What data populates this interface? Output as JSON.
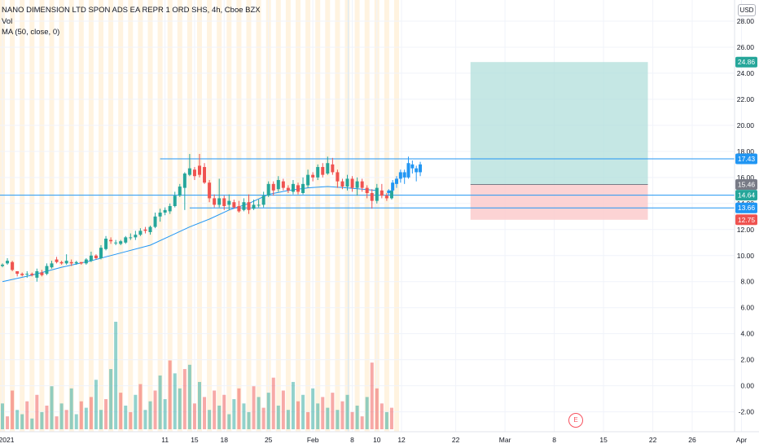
{
  "legend": {
    "symbol": "NANO DIMENSION LTD SPON ADS EA REPR 1 ORD SHS, 4h, Cboe BZX",
    "volume": "Vol",
    "ma": "MA (50, close, 0)"
  },
  "currency": "USD",
  "earnings_marker": "E",
  "colors": {
    "up": "#26a69a",
    "down": "#ef5350",
    "projection": "#2196f3",
    "ma": "#2196f3",
    "level_line": "#2196f3",
    "target_zone": "#b2dfdb",
    "stop_zone": "#fccbcd",
    "session_band": "#fff3e0"
  },
  "chart_data": {
    "type": "candlestick",
    "x_axis": {
      "tick_labels": [
        "2021",
        "11",
        "15",
        "18",
        "25",
        "Feb",
        "8",
        "10",
        "12",
        "22",
        "Mar",
        "8",
        "15",
        "22",
        "26",
        "Apr"
      ],
      "tick_positions": [
        0.0,
        16.5,
        19.5,
        22.5,
        27.0,
        31.5,
        35.5,
        38.0,
        40.5,
        46.0,
        51.0,
        56.0,
        61.0,
        66.0,
        70.0,
        75.0
      ]
    },
    "y_axis": {
      "tick_labels": [
        "28.00",
        "26.00",
        "24.00",
        "22.00",
        "20.00",
        "18.00",
        "16.00",
        "14.00",
        "12.00",
        "10.00",
        "8.00",
        "6.00",
        "4.00",
        "2.00",
        "0.00",
        "-2.00"
      ],
      "ylim": [
        -2.9,
        29
      ]
    },
    "price_badges": [
      {
        "label": "24.86",
        "value": 24.86,
        "color": "#26a69a"
      },
      {
        "label": "17.43",
        "value": 17.43,
        "color": "#2196f3"
      },
      {
        "label": "15.46",
        "value": 15.46,
        "color": "#787b86"
      },
      {
        "label": "14.64",
        "value": 14.64,
        "color": "#26a69a"
      },
      {
        "label": "13.66",
        "value": 13.66,
        "color": "#2196f3"
      },
      {
        "label": "12.75",
        "value": 12.75,
        "color": "#ef5350"
      }
    ],
    "horizontal_levels": [
      {
        "value": 17.43,
        "x_start": 16.0,
        "x_end": 999
      },
      {
        "value": 14.64,
        "x_start": -1,
        "x_end": 999
      },
      {
        "value": 13.66,
        "x_start": 19.0,
        "x_end": 999
      }
    ],
    "position_tool": {
      "x_start": 47.5,
      "x_end": 65.5,
      "entry": 15.46,
      "target": 24.86,
      "stop": 12.75
    },
    "ma_line": [
      [
        0,
        8.0
      ],
      [
        3,
        8.5
      ],
      [
        6,
        9.1
      ],
      [
        9,
        9.6
      ],
      [
        12,
        10.2
      ],
      [
        15,
        10.8
      ],
      [
        17,
        11.5
      ],
      [
        19,
        12.2
      ],
      [
        21,
        12.8
      ],
      [
        23,
        13.5
      ],
      [
        25,
        14.0
      ],
      [
        27,
        14.7
      ],
      [
        29,
        15.0
      ],
      [
        31,
        15.2
      ],
      [
        33,
        15.3
      ],
      [
        35,
        15.2
      ],
      [
        36.5,
        15.1
      ],
      [
        38,
        15.0
      ]
    ],
    "candles": [
      [
        0.0,
        9.2,
        9.3,
        9.4,
        9.1
      ],
      [
        0.5,
        9.4,
        9.6,
        9.8,
        9.3
      ],
      [
        1.0,
        9.5,
        8.9,
        9.6,
        8.8
      ],
      [
        1.5,
        8.8,
        8.6,
        8.8,
        8.4
      ],
      [
        2.0,
        8.6,
        8.5,
        8.7,
        8.4
      ],
      [
        2.5,
        8.6,
        8.6,
        8.8,
        8.3
      ],
      [
        3.0,
        8.6,
        8.5,
        8.7,
        8.4
      ],
      [
        3.5,
        8.3,
        8.8,
        9.0,
        8.0
      ],
      [
        4.0,
        8.7,
        8.5,
        8.9,
        8.4
      ],
      [
        4.5,
        8.6,
        9.2,
        9.4,
        8.5
      ],
      [
        5.0,
        9.1,
        9.4,
        9.6,
        9.0
      ],
      [
        5.5,
        9.7,
        9.5,
        9.9,
        9.4
      ],
      [
        6.0,
        9.5,
        9.4,
        9.6,
        9.3
      ],
      [
        6.5,
        9.4,
        9.6,
        10.1,
        9.3
      ],
      [
        7.0,
        9.5,
        9.4,
        9.7,
        9.2
      ],
      [
        7.5,
        9.4,
        9.5,
        9.6,
        9.3
      ],
      [
        8.0,
        9.5,
        9.4,
        9.5,
        9.3
      ],
      [
        8.5,
        9.4,
        9.7,
        9.8,
        9.3
      ],
      [
        9.0,
        9.6,
        10.0,
        10.3,
        9.5
      ],
      [
        9.5,
        10.0,
        9.8,
        10.1,
        9.7
      ],
      [
        10.0,
        9.8,
        10.6,
        10.8,
        9.7
      ],
      [
        10.5,
        10.5,
        11.3,
        11.5,
        10.4
      ],
      [
        11.0,
        11.2,
        11.1,
        11.4,
        10.9
      ],
      [
        11.5,
        11.0,
        11.0,
        11.2,
        10.8
      ],
      [
        12.0,
        10.9,
        11.1,
        11.2,
        10.8
      ],
      [
        12.5,
        11.0,
        11.4,
        11.5,
        10.9
      ],
      [
        13.0,
        11.4,
        11.4,
        11.7,
        11.2
      ],
      [
        13.5,
        11.4,
        11.6,
        11.9,
        11.2
      ],
      [
        14.0,
        11.6,
        11.9,
        12.1,
        11.5
      ],
      [
        14.5,
        12.0,
        11.9,
        12.2,
        11.7
      ],
      [
        15.0,
        11.8,
        12.2,
        12.3,
        11.6
      ],
      [
        15.5,
        12.2,
        13.0,
        13.3,
        12.1
      ],
      [
        16.0,
        13.0,
        13.3,
        13.6,
        12.6
      ],
      [
        16.5,
        13.3,
        13.5,
        13.7,
        13.1
      ],
      [
        17.0,
        13.4,
        13.8,
        14.0,
        13.2
      ],
      [
        17.5,
        13.8,
        14.6,
        14.9,
        13.7
      ],
      [
        18.0,
        14.6,
        15.3,
        15.5,
        14.5
      ],
      [
        18.5,
        15.2,
        16.3,
        16.4,
        13.5
      ],
      [
        19.0,
        16.2,
        16.7,
        17.8,
        16.1
      ],
      [
        19.5,
        16.6,
        16.1,
        16.8,
        15.8
      ],
      [
        20.0,
        16.9,
        16.2,
        17.8,
        16.0
      ],
      [
        20.5,
        16.8,
        15.6,
        17.1,
        15.5
      ],
      [
        21.0,
        15.6,
        14.4,
        15.8,
        14.1
      ],
      [
        21.5,
        14.4,
        13.9,
        14.7,
        13.7
      ],
      [
        22.0,
        13.9,
        14.4,
        15.9,
        13.7
      ],
      [
        22.5,
        14.4,
        13.8,
        14.6,
        13.5
      ],
      [
        23.0,
        13.9,
        14.2,
        14.7,
        13.5
      ],
      [
        23.5,
        14.1,
        13.7,
        14.3,
        13.6
      ],
      [
        24.0,
        13.8,
        13.4,
        14.2,
        13.3
      ],
      [
        24.5,
        13.5,
        14.1,
        14.4,
        13.4
      ],
      [
        25.0,
        14.1,
        13.5,
        14.7,
        13.2
      ],
      [
        25.5,
        13.6,
        13.9,
        14.3,
        13.5
      ],
      [
        26.0,
        13.9,
        13.9,
        14.3,
        13.7
      ],
      [
        26.5,
        13.9,
        14.6,
        14.9,
        13.7
      ],
      [
        27.0,
        14.6,
        15.5,
        15.7,
        14.5
      ],
      [
        27.5,
        15.5,
        15.0,
        15.7,
        14.6
      ],
      [
        28.0,
        15.1,
        15.8,
        16.1,
        14.9
      ],
      [
        28.5,
        15.7,
        15.2,
        15.9,
        15.0
      ],
      [
        29.0,
        15.2,
        15.0,
        15.4,
        14.8
      ],
      [
        29.5,
        14.9,
        15.5,
        15.8,
        14.7
      ],
      [
        30.0,
        15.4,
        14.9,
        15.6,
        14.7
      ],
      [
        30.5,
        14.8,
        15.5,
        16.0,
        14.7
      ],
      [
        31.0,
        15.4,
        16.2,
        16.6,
        15.2
      ],
      [
        31.5,
        16.2,
        16.0,
        16.4,
        15.7
      ],
      [
        32.0,
        16.0,
        16.8,
        17.0,
        15.8
      ],
      [
        32.5,
        16.8,
        16.2,
        17.1,
        16.0
      ],
      [
        33.0,
        16.3,
        17.1,
        17.6,
        16.2
      ],
      [
        33.5,
        17.0,
        16.4,
        17.5,
        16.2
      ],
      [
        34.0,
        16.4,
        15.7,
        16.6,
        15.2
      ],
      [
        34.5,
        15.7,
        15.3,
        15.9,
        15.1
      ],
      [
        35.0,
        15.3,
        15.9,
        16.2,
        15.0
      ],
      [
        35.5,
        15.9,
        15.2,
        16.1,
        14.9
      ],
      [
        36.0,
        15.2,
        15.7,
        16.0,
        14.6
      ],
      [
        36.5,
        15.7,
        15.2,
        15.9,
        14.9
      ],
      [
        37.0,
        15.2,
        14.8,
        15.4,
        14.4
      ],
      [
        37.5,
        14.8,
        14.2,
        15.1,
        13.6
      ],
      [
        38.0,
        14.2,
        15.2,
        15.5,
        14.0
      ],
      [
        38.5,
        15.0,
        14.6,
        15.5,
        14.4
      ],
      [
        39.0,
        14.6,
        14.4,
        14.8,
        14.2
      ],
      [
        39.5,
        14.4,
        15.0,
        15.2,
        14.3
      ]
    ],
    "projection": [
      [
        39.2,
        14.8,
        15.0,
        15.1,
        14.6
      ],
      [
        39.6,
        15.0,
        15.6,
        15.8,
        14.9
      ],
      [
        40.0,
        15.5,
        15.9,
        16.1,
        15.2
      ],
      [
        40.4,
        15.9,
        16.4,
        16.6,
        15.6
      ],
      [
        40.8,
        16.4,
        16.0,
        16.6,
        15.5
      ],
      [
        41.2,
        16.0,
        17.1,
        17.6,
        15.9
      ],
      [
        41.6,
        17.0,
        16.7,
        17.3,
        16.3
      ],
      [
        42.0,
        16.7,
        16.4,
        16.9,
        15.7
      ],
      [
        42.4,
        16.4,
        17.0,
        17.2,
        16.1
      ]
    ],
    "volume": [
      [
        0.0,
        1.2,
        1
      ],
      [
        0.5,
        0.6,
        0
      ],
      [
        1.0,
        1.8,
        0
      ],
      [
        1.5,
        0.9,
        1
      ],
      [
        2.0,
        0.7,
        1
      ],
      [
        2.5,
        1.3,
        0
      ],
      [
        3.0,
        0.5,
        1
      ],
      [
        3.5,
        1.6,
        0
      ],
      [
        4.0,
        0.8,
        1
      ],
      [
        4.5,
        1.1,
        0
      ],
      [
        5.0,
        2.0,
        1
      ],
      [
        5.5,
        0.6,
        0
      ],
      [
        6.0,
        1.2,
        1
      ],
      [
        6.5,
        0.9,
        0
      ],
      [
        7.0,
        1.9,
        1
      ],
      [
        7.5,
        0.7,
        1
      ],
      [
        8.0,
        1.3,
        0
      ],
      [
        8.5,
        1.0,
        1
      ],
      [
        9.0,
        1.5,
        0
      ],
      [
        9.5,
        2.3,
        1
      ],
      [
        10.0,
        0.9,
        1
      ],
      [
        10.5,
        1.4,
        0
      ],
      [
        11.0,
        2.8,
        1
      ],
      [
        11.5,
        5.0,
        1
      ],
      [
        12.0,
        1.7,
        0
      ],
      [
        12.5,
        1.1,
        1
      ],
      [
        13.0,
        0.8,
        0
      ],
      [
        13.5,
        1.6,
        1
      ],
      [
        14.0,
        2.1,
        0
      ],
      [
        14.5,
        0.9,
        1
      ],
      [
        15.0,
        1.3,
        1
      ],
      [
        15.5,
        1.8,
        0
      ],
      [
        16.0,
        2.5,
        1
      ],
      [
        16.5,
        1.4,
        1
      ],
      [
        17.0,
        3.2,
        0
      ],
      [
        17.5,
        2.6,
        1
      ],
      [
        18.0,
        1.9,
        1
      ],
      [
        18.5,
        2.8,
        0
      ],
      [
        19.0,
        3.0,
        1
      ],
      [
        19.5,
        1.2,
        0
      ],
      [
        20.0,
        2.2,
        1
      ],
      [
        20.5,
        1.5,
        0
      ],
      [
        21.0,
        0.9,
        1
      ],
      [
        21.5,
        1.8,
        0
      ],
      [
        22.0,
        1.1,
        1
      ],
      [
        22.5,
        1.6,
        0
      ],
      [
        23.0,
        0.7,
        1
      ],
      [
        23.5,
        1.4,
        1
      ],
      [
        24.0,
        1.9,
        0
      ],
      [
        24.5,
        1.2,
        1
      ],
      [
        25.0,
        0.8,
        1
      ],
      [
        25.5,
        2.0,
        0
      ],
      [
        26.0,
        1.5,
        1
      ],
      [
        26.5,
        1.0,
        0
      ],
      [
        27.0,
        1.7,
        1
      ],
      [
        27.5,
        2.4,
        0
      ],
      [
        28.0,
        1.1,
        1
      ],
      [
        28.5,
        1.8,
        0
      ],
      [
        29.0,
        0.9,
        1
      ],
      [
        29.5,
        2.2,
        1
      ],
      [
        30.0,
        1.3,
        0
      ],
      [
        30.5,
        1.6,
        1
      ],
      [
        31.0,
        0.8,
        0
      ],
      [
        31.5,
        1.9,
        1
      ],
      [
        32.0,
        1.2,
        1
      ],
      [
        32.5,
        1.5,
        0
      ],
      [
        33.0,
        1.0,
        1
      ],
      [
        33.5,
        1.7,
        0
      ],
      [
        34.0,
        0.9,
        1
      ],
      [
        34.5,
        1.3,
        0
      ],
      [
        35.0,
        1.6,
        1
      ],
      [
        35.5,
        0.8,
        0
      ],
      [
        36.0,
        1.1,
        1
      ],
      [
        36.5,
        0.6,
        0
      ],
      [
        37.0,
        1.5,
        1
      ],
      [
        37.5,
        3.1,
        0
      ],
      [
        38.0,
        1.9,
        0
      ],
      [
        38.5,
        1.2,
        0
      ],
      [
        39.0,
        0.8,
        1
      ],
      [
        39.5,
        1.0,
        0
      ]
    ],
    "volume_max": 5.0
  }
}
